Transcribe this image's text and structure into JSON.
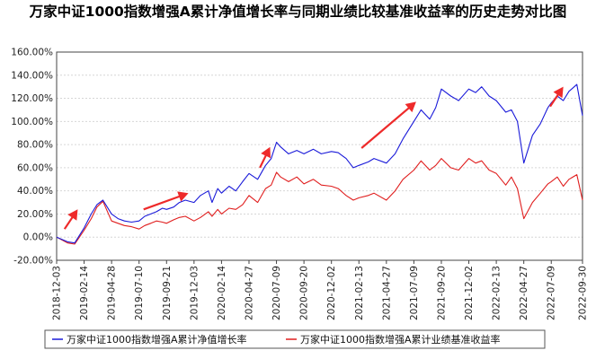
{
  "chart_data": {
    "type": "line",
    "title": "万家中证1000指数增强A累计净值增长率与同期业绩比较基准收益率的历史走势对比图",
    "ylim": [
      -20,
      160
    ],
    "yticks": [
      "-20.00%",
      "0.00%",
      "20.00%",
      "40.00%",
      "60.00%",
      "80.00%",
      "100.00%",
      "120.00%",
      "140.00%",
      "160.00%"
    ],
    "ytick_values": [
      -20,
      0,
      20,
      40,
      60,
      80,
      100,
      120,
      140,
      160
    ],
    "xticks": [
      "2018-12-03",
      "2019-02-14",
      "2019-04-28",
      "2019-07-10",
      "2019-09-21",
      "2019-12-03",
      "2020-02-14",
      "2020-04-27",
      "2020-07-09",
      "2020-09-20",
      "2020-12-02",
      "2021-02-13",
      "2021-04-27",
      "2021-07-09",
      "2021-09-20",
      "2021-12-02",
      "2022-02-13",
      "2022-04-27",
      "2022-07-09",
      "2022-09-30"
    ],
    "x": [
      "2018-12-03",
      "2019-01-01",
      "2019-01-20",
      "2019-02-14",
      "2019-03-05",
      "2019-03-20",
      "2019-04-05",
      "2019-04-28",
      "2019-05-15",
      "2019-06-01",
      "2019-06-20",
      "2019-07-10",
      "2019-07-25",
      "2019-08-10",
      "2019-08-25",
      "2019-09-10",
      "2019-09-21",
      "2019-10-10",
      "2019-10-25",
      "2019-11-10",
      "2019-12-03",
      "2019-12-20",
      "2020-01-10",
      "2020-01-20",
      "2020-02-04",
      "2020-02-14",
      "2020-03-05",
      "2020-03-23",
      "2020-04-10",
      "2020-04-27",
      "2020-05-20",
      "2020-06-10",
      "2020-06-25",
      "2020-07-09",
      "2020-07-20",
      "2020-08-10",
      "2020-09-01",
      "2020-09-20",
      "2020-10-15",
      "2020-11-05",
      "2020-12-02",
      "2020-12-20",
      "2021-01-10",
      "2021-01-29",
      "2021-02-13",
      "2021-03-10",
      "2021-03-25",
      "2021-04-27",
      "2021-05-20",
      "2021-06-10",
      "2021-07-09",
      "2021-07-28",
      "2021-08-20",
      "2021-09-05",
      "2021-09-20",
      "2021-10-15",
      "2021-11-05",
      "2021-12-02",
      "2021-12-20",
      "2022-01-05",
      "2022-01-25",
      "2022-02-13",
      "2022-03-10",
      "2022-03-25",
      "2022-04-10",
      "2022-04-27",
      "2022-05-20",
      "2022-06-10",
      "2022-06-30",
      "2022-07-09",
      "2022-07-25",
      "2022-08-10",
      "2022-08-25",
      "2022-09-15",
      "2022-09-30"
    ],
    "series": [
      {
        "name": "万家中证1000指数增强A累计净值增长率",
        "color": "#1a1ad9",
        "values": [
          0,
          -4,
          -5,
          8,
          20,
          28,
          32,
          20,
          16,
          14,
          13,
          14,
          18,
          20,
          22,
          25,
          24,
          26,
          30,
          32,
          30,
          36,
          40,
          30,
          42,
          38,
          44,
          40,
          48,
          55,
          50,
          62,
          68,
          82,
          78,
          72,
          75,
          72,
          76,
          72,
          74,
          73,
          68,
          60,
          62,
          65,
          68,
          64,
          72,
          85,
          100,
          110,
          102,
          112,
          128,
          122,
          118,
          128,
          125,
          130,
          122,
          118,
          108,
          110,
          100,
          64,
          88,
          98,
          112,
          116,
          122,
          118,
          126,
          132,
          105
        ]
      },
      {
        "name": "万家中证1000指数增强A累计业绩基准收益率",
        "color": "#e01e1e",
        "values": [
          0,
          -5,
          -6,
          6,
          16,
          26,
          31,
          14,
          12,
          10,
          9,
          7,
          10,
          12,
          14,
          13,
          12,
          15,
          17,
          18,
          14,
          17,
          22,
          18,
          24,
          20,
          25,
          24,
          28,
          36,
          30,
          42,
          45,
          56,
          52,
          48,
          52,
          46,
          50,
          45,
          44,
          42,
          36,
          32,
          34,
          36,
          38,
          32,
          40,
          50,
          58,
          66,
          58,
          62,
          68,
          60,
          58,
          68,
          64,
          66,
          58,
          55,
          45,
          52,
          42,
          16,
          30,
          38,
          46,
          48,
          52,
          44,
          50,
          54,
          32
        ]
      }
    ],
    "grid": "horizontal",
    "legend_position": "bottom-left"
  }
}
